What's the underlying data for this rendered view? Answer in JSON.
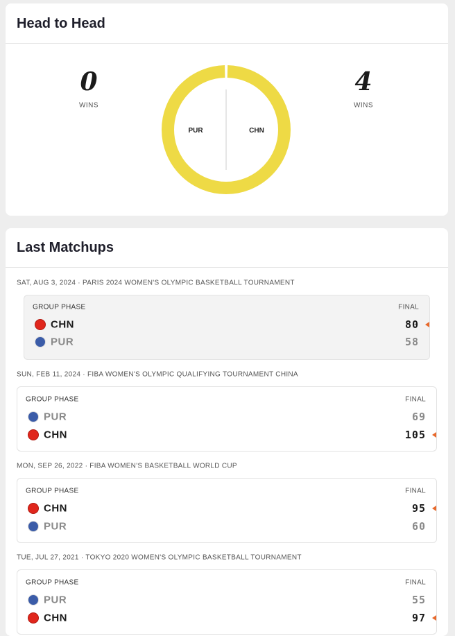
{
  "head_to_head": {
    "title": "Head to Head",
    "ring_color": "#eeda45",
    "teams": [
      {
        "name": "PUR",
        "wins": 0,
        "wins_label": "WINS"
      },
      {
        "name": "CHN",
        "wins": 4,
        "wins_label": "WINS"
      }
    ]
  },
  "last_matchups": {
    "title": "Last Matchups",
    "games": [
      {
        "header": "SAT, AUG 3, 2024 · PARIS 2024 WOMEN'S OLYMPIC BASKETBALL TOURNAMENT",
        "phase": "GROUP PHASE",
        "status": "FINAL",
        "highlighted": true,
        "teams": [
          {
            "name": "CHN",
            "score": 80,
            "winner": true,
            "flag": "#e0261c"
          },
          {
            "name": "PUR",
            "score": 58,
            "winner": false,
            "flag": "#3b5ca8"
          }
        ]
      },
      {
        "header": "SUN, FEB 11, 2024 · FIBA WOMEN'S OLYMPIC QUALIFYING TOURNAMENT CHINA",
        "phase": "GROUP PHASE",
        "status": "FINAL",
        "highlighted": false,
        "teams": [
          {
            "name": "PUR",
            "score": 69,
            "winner": false,
            "flag": "#3b5ca8"
          },
          {
            "name": "CHN",
            "score": 105,
            "winner": true,
            "flag": "#e0261c"
          }
        ]
      },
      {
        "header": "MON, SEP 26, 2022 · FIBA WOMEN'S BASKETBALL WORLD CUP",
        "phase": "GROUP PHASE",
        "status": "FINAL",
        "highlighted": false,
        "teams": [
          {
            "name": "CHN",
            "score": 95,
            "winner": true,
            "flag": "#e0261c"
          },
          {
            "name": "PUR",
            "score": 60,
            "winner": false,
            "flag": "#3b5ca8"
          }
        ]
      },
      {
        "header": "TUE, JUL 27, 2021 · TOKYO 2020 WOMEN'S OLYMPIC BASKETBALL TOURNAMENT",
        "phase": "GROUP PHASE",
        "status": "FINAL",
        "highlighted": false,
        "teams": [
          {
            "name": "PUR",
            "score": 55,
            "winner": false,
            "flag": "#3b5ca8"
          },
          {
            "name": "CHN",
            "score": 97,
            "winner": true,
            "flag": "#e0261c"
          }
        ]
      }
    ]
  }
}
